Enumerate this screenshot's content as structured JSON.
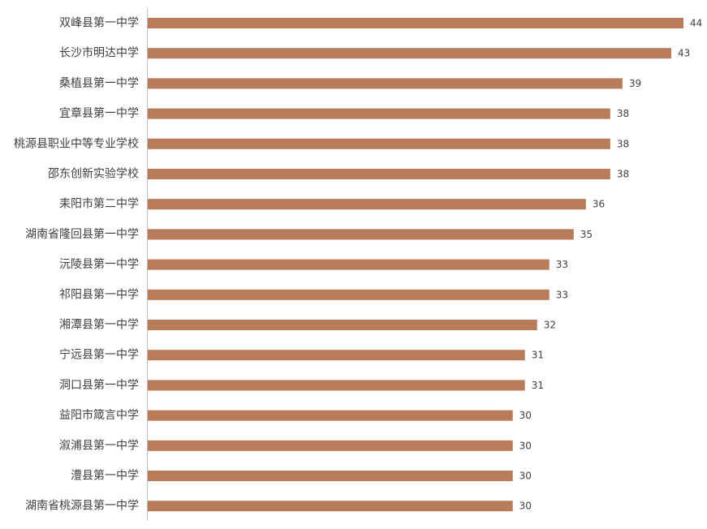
{
  "chart_data": {
    "type": "bar",
    "orientation": "horizontal",
    "categories": [
      "双峰县第一中学",
      "长沙市明达中学",
      "桑植县第一中学",
      "宜章县第一中学",
      "桃源县职业中等专业学校",
      "邵东创新实验学校",
      "耒阳市第二中学",
      "湖南省隆回县第一中学",
      "沅陵县第一中学",
      "祁阳县第一中学",
      "湘潭县第一中学",
      "宁远县第一中学",
      "洞口县第一中学",
      "益阳市箴言中学",
      "溆浦县第一中学",
      "澧县第一中学",
      "湖南省桃源县第一中学"
    ],
    "values": [
      44,
      43,
      39,
      38,
      38,
      38,
      36,
      35,
      33,
      33,
      32,
      31,
      31,
      30,
      30,
      30,
      30
    ],
    "data_labels": [
      "44",
      "43",
      "39",
      "38",
      "38",
      "38",
      "36",
      "35",
      "33",
      "33",
      "32",
      "31",
      "31",
      "30",
      "30",
      "30",
      "30"
    ],
    "xlim": [
      0,
      44
    ],
    "bar_color": "#b87c5a",
    "axis_color": "#bfbfbf",
    "text_color": "#404040",
    "grid": false,
    "legend": "none"
  }
}
